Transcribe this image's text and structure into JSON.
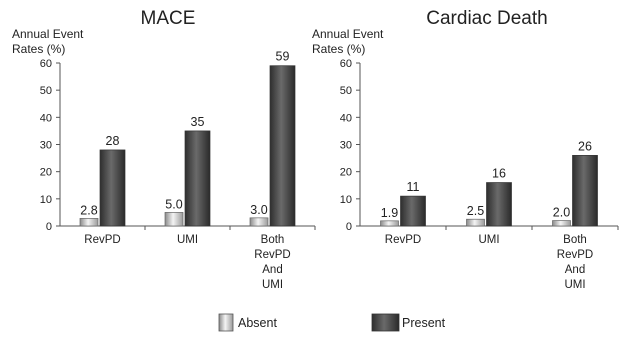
{
  "chart_data": [
    {
      "type": "bar",
      "title": "MACE",
      "ylabel_lines": [
        "Annual Event",
        "Rates (%)"
      ],
      "ylim": [
        0,
        60
      ],
      "yticks": [
        0,
        10,
        20,
        30,
        40,
        50,
        60
      ],
      "categories": [
        [
          "RevPD"
        ],
        [
          "UMI"
        ],
        [
          "Both",
          "RevPD",
          "And",
          "UMI"
        ]
      ],
      "series": [
        {
          "name": "Absent",
          "values": [
            2.8,
            5.0,
            3.0
          ],
          "labels": [
            "2.8",
            "5.0",
            "3.0"
          ]
        },
        {
          "name": "Present",
          "values": [
            28,
            35,
            59
          ],
          "labels": [
            "28",
            "35",
            "59"
          ]
        }
      ]
    },
    {
      "type": "bar",
      "title": "Cardiac Death",
      "ylabel_lines": [
        "Annual Event",
        "Rates (%)"
      ],
      "ylim": [
        0,
        60
      ],
      "yticks": [
        0,
        10,
        20,
        30,
        40,
        50,
        60
      ],
      "categories": [
        [
          "RevPD"
        ],
        [
          "UMI"
        ],
        [
          "Both",
          "RevPD",
          "And",
          "UMI"
        ]
      ],
      "series": [
        {
          "name": "Absent",
          "values": [
            1.9,
            2.5,
            2.0
          ],
          "labels": [
            "1.9",
            "2.5",
            "2.0"
          ]
        },
        {
          "name": "Present",
          "values": [
            11,
            16,
            26
          ],
          "labels": [
            "11",
            "16",
            "26"
          ]
        }
      ]
    }
  ],
  "legend": {
    "placement": "bottom",
    "items": [
      {
        "label": "Absent",
        "style": "light"
      },
      {
        "label": "Present",
        "style": "dark"
      }
    ]
  }
}
